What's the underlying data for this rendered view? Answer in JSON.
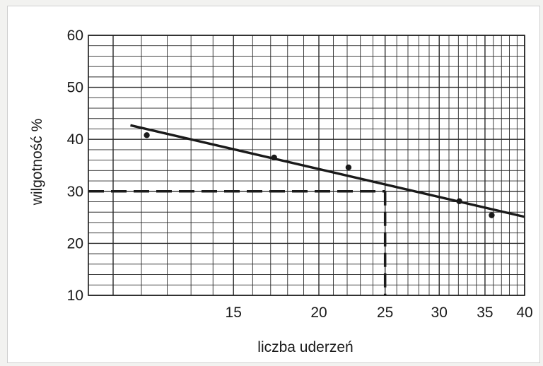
{
  "chart_data": {
    "type": "line",
    "xlabel": "liczba uderzeń",
    "ylabel": "wilgotność %",
    "x_scale": "log",
    "xlim": [
      9.2,
      40
    ],
    "ylim": [
      10,
      60
    ],
    "x_ticks": [
      15,
      20,
      25,
      30,
      35,
      40
    ],
    "y_ticks": [
      10,
      20,
      30,
      40,
      50,
      60
    ],
    "grid": true,
    "points": [
      {
        "x": 11.2,
        "y": 40.8
      },
      {
        "x": 17.2,
        "y": 36.5
      },
      {
        "x": 22.1,
        "y": 34.6
      },
      {
        "x": 32.1,
        "y": 28.1
      },
      {
        "x": 35.8,
        "y": 25.4
      }
    ],
    "trend_line": [
      {
        "x": 10.6,
        "y": 42.7
      },
      {
        "x": 40,
        "y": 25.1
      }
    ],
    "reference": {
      "x": 25,
      "y": 30
    },
    "colors": {
      "ink": "#1a1a1a",
      "grid": "#2a2a2a",
      "background": "#ffffff"
    }
  }
}
